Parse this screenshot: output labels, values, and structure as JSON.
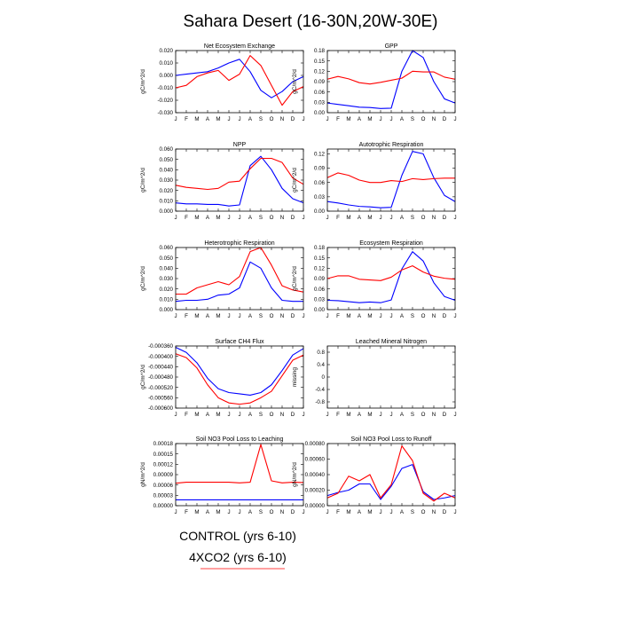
{
  "figure": {
    "title": "Sahara Desert (16-30N,20W-30E)",
    "legend": [
      {
        "label": "CONTROL (yrs 6-10)",
        "color": "#0000ff"
      },
      {
        "label": "4XCO2 (yrs 6-10)",
        "color": "#ff0000"
      }
    ],
    "colors": {
      "control": "#0000ff",
      "4xco2": "#ff0000"
    }
  },
  "chart_data": [
    {
      "type": "line",
      "title": "Net Ecosystem Exchange",
      "ylabel": "gC/m^2/d",
      "x": [
        "J",
        "F",
        "M",
        "A",
        "M",
        "J",
        "J",
        "A",
        "S",
        "O",
        "N",
        "D",
        "J"
      ],
      "ylim": [
        -0.03,
        0.02
      ],
      "yticks": [
        "0.020",
        "0.010",
        "0.000",
        "-0.010",
        "-0.020",
        "-0.030"
      ],
      "series": [
        {
          "name": "CONTROL (yrs 6-10)",
          "values": [
            0.0,
            0.001,
            0.002,
            0.003,
            0.006,
            0.01,
            0.013,
            0.003,
            -0.012,
            -0.018,
            -0.013,
            -0.005,
            -0.001
          ]
        },
        {
          "name": "4XCO2 (yrs 6-10)",
          "values": [
            -0.01,
            -0.008,
            -0.001,
            0.002,
            0.004,
            -0.004,
            0.001,
            0.016,
            0.008,
            -0.008,
            -0.024,
            -0.013,
            -0.009
          ]
        }
      ]
    },
    {
      "type": "line",
      "title": "GPP",
      "ylabel": "gC/m^2/d",
      "x": [
        "J",
        "F",
        "M",
        "A",
        "M",
        "J",
        "J",
        "A",
        "S",
        "O",
        "N",
        "D",
        "J"
      ],
      "ylim": [
        0,
        0.18
      ],
      "yticks": [
        "0.18",
        "0.15",
        "0.12",
        "0.09",
        "0.06",
        "0.03",
        "0.00"
      ],
      "series": [
        {
          "name": "CONTROL (yrs 6-10)",
          "values": [
            0.028,
            0.024,
            0.02,
            0.016,
            0.015,
            0.012,
            0.013,
            0.12,
            0.18,
            0.16,
            0.09,
            0.04,
            0.028
          ]
        },
        {
          "name": "4XCO2 (yrs 6-10)",
          "values": [
            0.097,
            0.105,
            0.098,
            0.087,
            0.083,
            0.088,
            0.094,
            0.1,
            0.12,
            0.118,
            0.118,
            0.103,
            0.097
          ]
        }
      ]
    },
    {
      "type": "line",
      "title": "NPP",
      "ylabel": "gC/m^2/d",
      "x": [
        "J",
        "F",
        "M",
        "A",
        "M",
        "J",
        "J",
        "A",
        "S",
        "O",
        "N",
        "D",
        "J"
      ],
      "ylim": [
        0,
        0.06
      ],
      "yticks": [
        "0.060",
        "0.050",
        "0.040",
        "0.030",
        "0.020",
        "0.010",
        "0.000"
      ],
      "series": [
        {
          "name": "CONTROL (yrs 6-10)",
          "values": [
            0.008,
            0.007,
            0.007,
            0.0065,
            0.0065,
            0.005,
            0.006,
            0.044,
            0.053,
            0.04,
            0.022,
            0.012,
            0.008
          ]
        },
        {
          "name": "4XCO2 (yrs 6-10)",
          "values": [
            0.025,
            0.023,
            0.022,
            0.021,
            0.022,
            0.028,
            0.029,
            0.041,
            0.051,
            0.051,
            0.047,
            0.032,
            0.026
          ]
        }
      ]
    },
    {
      "type": "line",
      "title": "Autotrophic Respiration",
      "ylabel": "gC/m^2/d",
      "x": [
        "J",
        "F",
        "M",
        "A",
        "M",
        "J",
        "J",
        "A",
        "S",
        "O",
        "N",
        "D",
        "J"
      ],
      "ylim": [
        0,
        0.13
      ],
      "yticks": [
        "0.12",
        "0.09",
        "0.06",
        "0.03",
        "0.00"
      ],
      "series": [
        {
          "name": "CONTROL (yrs 6-10)",
          "values": [
            0.02,
            0.017,
            0.013,
            0.01,
            0.009,
            0.007,
            0.008,
            0.075,
            0.125,
            0.12,
            0.07,
            0.033,
            0.02
          ]
        },
        {
          "name": "4XCO2 (yrs 6-10)",
          "values": [
            0.07,
            0.08,
            0.075,
            0.065,
            0.06,
            0.06,
            0.064,
            0.062,
            0.068,
            0.066,
            0.068,
            0.069,
            0.069
          ]
        }
      ]
    },
    {
      "type": "line",
      "title": "Heterotrophic Respiration",
      "ylabel": "gC/m^2/d",
      "x": [
        "J",
        "F",
        "M",
        "A",
        "M",
        "J",
        "J",
        "A",
        "S",
        "O",
        "N",
        "D",
        "J"
      ],
      "ylim": [
        0,
        0.06
      ],
      "yticks": [
        "0.060",
        "0.050",
        "0.040",
        "0.030",
        "0.020",
        "0.010",
        "0.000"
      ],
      "series": [
        {
          "name": "CONTROL (yrs 6-10)",
          "values": [
            0.008,
            0.009,
            0.009,
            0.01,
            0.014,
            0.015,
            0.021,
            0.046,
            0.04,
            0.021,
            0.009,
            0.008,
            0.008
          ]
        },
        {
          "name": "4XCO2 (yrs 6-10)",
          "values": [
            0.015,
            0.015,
            0.021,
            0.024,
            0.027,
            0.024,
            0.032,
            0.056,
            0.06,
            0.043,
            0.023,
            0.019,
            0.017
          ]
        }
      ]
    },
    {
      "type": "line",
      "title": "Ecosystem Respiration",
      "ylabel": "gC/m^2/d",
      "x": [
        "J",
        "F",
        "M",
        "A",
        "M",
        "J",
        "J",
        "A",
        "S",
        "O",
        "N",
        "D",
        "J"
      ],
      "ylim": [
        0,
        0.18
      ],
      "yticks": [
        "0.18",
        "0.15",
        "0.12",
        "0.09",
        "0.06",
        "0.03",
        "0.00"
      ],
      "series": [
        {
          "name": "CONTROL (yrs 6-10)",
          "values": [
            0.027,
            0.026,
            0.023,
            0.02,
            0.022,
            0.02,
            0.028,
            0.118,
            0.168,
            0.141,
            0.078,
            0.038,
            0.027
          ]
        },
        {
          "name": "4XCO2 (yrs 6-10)",
          "values": [
            0.09,
            0.098,
            0.098,
            0.088,
            0.086,
            0.084,
            0.094,
            0.115,
            0.127,
            0.109,
            0.097,
            0.091,
            0.088
          ]
        }
      ]
    },
    {
      "type": "line",
      "title": "Surface CH4 Flux",
      "ylabel": "gC/m^2/d",
      "x": [
        "J",
        "F",
        "M",
        "A",
        "M",
        "J",
        "J",
        "A",
        "S",
        "O",
        "N",
        "D",
        "J"
      ],
      "ylim": [
        -0.0006,
        -0.00036
      ],
      "yticks": [
        "-0.000360",
        "-0.000400",
        "-0.000440",
        "-0.000480",
        "-0.000520",
        "-0.000560",
        "-0.000600"
      ],
      "series": [
        {
          "name": "CONTROL (yrs 6-10)",
          "values": [
            -0.000365,
            -0.000385,
            -0.000425,
            -0.000485,
            -0.000525,
            -0.00054,
            -0.000545,
            -0.00055,
            -0.00054,
            -0.00051,
            -0.000455,
            -0.000395,
            -0.00037
          ]
        },
        {
          "name": "4XCO2 (yrs 6-10)",
          "values": [
            -0.00039,
            -0.000405,
            -0.000445,
            -0.00051,
            -0.00056,
            -0.00058,
            -0.000585,
            -0.00058,
            -0.00056,
            -0.000535,
            -0.000475,
            -0.000415,
            -0.000395
          ]
        }
      ]
    },
    {
      "type": "line",
      "title": "Leached Mineral Nitrogen",
      "ylabel": "missing",
      "x": [
        "J",
        "F",
        "M",
        "A",
        "M",
        "J",
        "J",
        "A",
        "S",
        "O",
        "N",
        "D",
        "J"
      ],
      "ylim": [
        -1,
        1
      ],
      "yticks": [
        "0.8",
        "0.4",
        "0",
        "-0.4",
        "-0.8"
      ],
      "series": []
    },
    {
      "type": "line",
      "title": "Soil NO3 Pool Loss to Leaching",
      "ylabel": "gN/m^2/d",
      "x": [
        "J",
        "F",
        "M",
        "A",
        "M",
        "J",
        "J",
        "A",
        "S",
        "O",
        "N",
        "D",
        "J"
      ],
      "ylim": [
        0,
        0.00018
      ],
      "yticks": [
        "0.00018",
        "0.00015",
        "0.00012",
        "0.00009",
        "0.00006",
        "0.00003",
        "0.00000"
      ],
      "series": [
        {
          "name": "CONTROL (yrs 6-10)",
          "values": [
            1.7e-05,
            1.7e-05,
            1.7e-05,
            1.7e-05,
            1.7e-05,
            1.7e-05,
            1.7e-05,
            1.7e-05,
            1.7e-05,
            1.7e-05,
            1.7e-05,
            1.7e-05,
            1.7e-05
          ]
        },
        {
          "name": "4XCO2 (yrs 6-10)",
          "values": [
            6.5e-05,
            6.8e-05,
            6.8e-05,
            6.8e-05,
            6.8e-05,
            6.8e-05,
            6.6e-05,
            6.8e-05,
            0.000177,
            7.2e-05,
            6.6e-05,
            6.8e-05,
            6.7e-05
          ]
        }
      ]
    },
    {
      "type": "line",
      "title": "Soil NO3 Pool Loss to Runoff",
      "ylabel": "gN/m^2/d",
      "x": [
        "J",
        "F",
        "M",
        "A",
        "M",
        "J",
        "J",
        "A",
        "S",
        "O",
        "N",
        "D",
        "J"
      ],
      "ylim": [
        0,
        0.0008
      ],
      "yticks": [
        "0.00080",
        "0.00060",
        "0.00040",
        "0.00020",
        "0.00000"
      ],
      "series": [
        {
          "name": "CONTROL (yrs 6-10)",
          "values": [
            0.00013,
            0.00017,
            0.0002,
            0.00028,
            0.00028,
            8e-05,
            0.00025,
            0.00048,
            0.00053,
            0.00018,
            8e-05,
            0.0001,
            0.00013
          ]
        },
        {
          "name": "4XCO2 (yrs 6-10)",
          "values": [
            0.0001,
            0.00016,
            0.00038,
            0.00032,
            0.0004,
            0.0001,
            0.00027,
            0.00077,
            0.00058,
            0.00016,
            6e-05,
            0.00016,
            0.0001
          ]
        }
      ]
    }
  ]
}
